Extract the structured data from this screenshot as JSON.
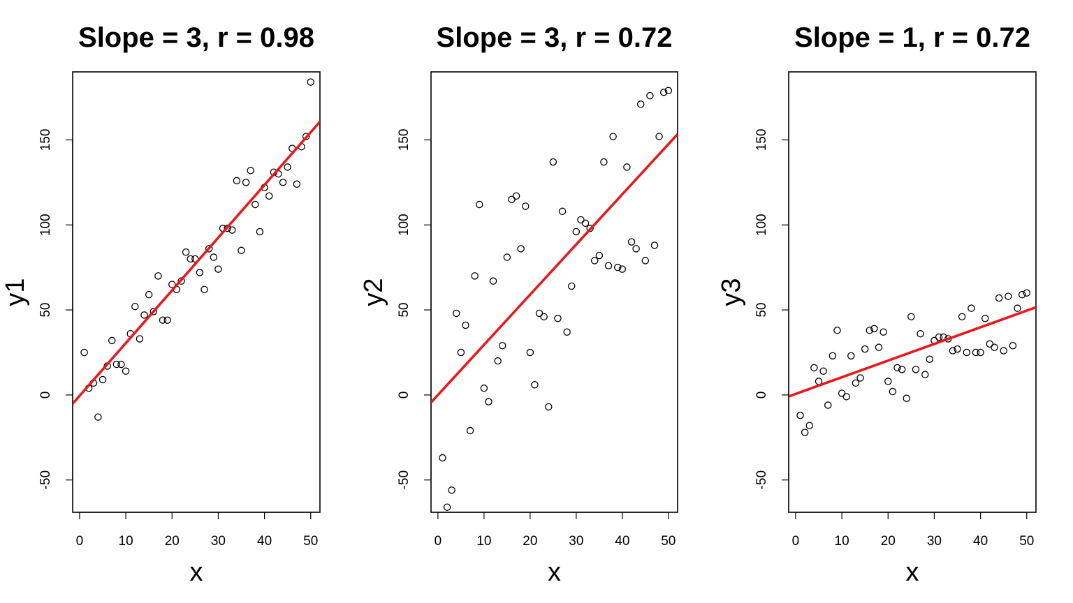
{
  "chart_data": [
    {
      "type": "scatter",
      "title": "Slope = 3, r = 0.98",
      "xlabel": "x",
      "ylabel": "y1",
      "xlim": [
        -1.5,
        52
      ],
      "ylim": [
        -69,
        190
      ],
      "xticks": [
        0,
        10,
        20,
        30,
        40,
        50
      ],
      "yticks": [
        -50,
        0,
        50,
        100,
        150
      ],
      "grid": false,
      "point_color": "#000000",
      "line_color": "#e8191b",
      "fit_line": {
        "slope": 3.1,
        "intercept": -0.5
      },
      "series": [
        {
          "x": [
            1,
            2,
            3,
            4,
            5,
            6,
            7,
            8,
            9,
            10,
            11,
            12,
            13,
            14,
            15,
            16,
            17,
            18,
            19,
            20,
            21,
            22,
            23,
            24,
            25,
            26,
            27,
            28,
            29,
            30,
            31,
            32,
            33,
            34,
            35,
            36,
            37,
            38,
            39,
            40,
            41,
            42,
            43,
            44,
            45,
            46,
            47,
            48,
            49,
            50
          ],
          "y": [
            25,
            4,
            7,
            -13,
            9,
            17,
            32,
            18,
            18,
            14,
            36,
            52,
            33,
            47,
            59,
            49,
            70,
            44,
            44,
            65,
            62,
            67,
            84,
            80,
            80,
            72,
            62,
            86,
            81,
            74,
            98,
            98,
            97,
            126,
            85,
            125,
            132,
            112,
            96,
            122,
            117,
            131,
            130,
            125,
            134,
            145,
            124,
            146,
            152,
            184
          ]
        }
      ]
    },
    {
      "type": "scatter",
      "title": "Slope = 3, r = 0.72",
      "xlabel": "x",
      "ylabel": "y2",
      "xlim": [
        -1.5,
        52
      ],
      "ylim": [
        -69,
        190
      ],
      "xticks": [
        0,
        10,
        20,
        30,
        40,
        50
      ],
      "yticks": [
        -50,
        0,
        50,
        100,
        150
      ],
      "grid": false,
      "point_color": "#000000",
      "line_color": "#e8191b",
      "fit_line": {
        "slope": 2.95,
        "intercept": 0
      },
      "series": [
        {
          "x": [
            1,
            2,
            3,
            4,
            5,
            6,
            7,
            8,
            9,
            10,
            11,
            12,
            13,
            14,
            15,
            16,
            17,
            18,
            19,
            20,
            21,
            22,
            23,
            24,
            25,
            26,
            27,
            28,
            29,
            30,
            31,
            32,
            33,
            34,
            35,
            36,
            37,
            38,
            39,
            40,
            41,
            42,
            43,
            44,
            45,
            46,
            47,
            48,
            49,
            50
          ],
          "y": [
            -37,
            -66,
            -56,
            48,
            25,
            41,
            -21,
            70,
            112,
            4,
            -4,
            67,
            20,
            29,
            81,
            115,
            117,
            86,
            111,
            25,
            6,
            48,
            46,
            -7,
            137,
            45,
            108,
            37,
            64,
            96,
            103,
            101,
            98,
            79,
            82,
            137,
            76,
            152,
            75,
            74,
            134,
            90,
            86,
            171,
            79,
            176,
            88,
            152,
            178,
            179
          ]
        }
      ]
    },
    {
      "type": "scatter",
      "title": "Slope = 1, r = 0.72",
      "xlabel": "x",
      "ylabel": "y3",
      "xlim": [
        -1.5,
        52
      ],
      "ylim": [
        -69,
        190
      ],
      "xticks": [
        0,
        10,
        20,
        30,
        40,
        50
      ],
      "yticks": [
        -50,
        0,
        50,
        100,
        150
      ],
      "grid": false,
      "point_color": "#000000",
      "line_color": "#e8191b",
      "fit_line": {
        "slope": 0.98,
        "intercept": 0.6
      },
      "series": [
        {
          "x": [
            1,
            2,
            3,
            4,
            5,
            6,
            7,
            8,
            9,
            10,
            11,
            12,
            13,
            14,
            15,
            16,
            17,
            18,
            19,
            20,
            21,
            22,
            23,
            24,
            25,
            26,
            27,
            28,
            29,
            30,
            31,
            32,
            33,
            34,
            35,
            36,
            37,
            38,
            39,
            40,
            41,
            42,
            43,
            44,
            45,
            46,
            47,
            48,
            49,
            50
          ],
          "y": [
            -12,
            -22,
            -18,
            16,
            8,
            14,
            -6,
            23,
            38,
            1,
            -1,
            23,
            7,
            10,
            27,
            38,
            39,
            28,
            37,
            8,
            2,
            16,
            15,
            -2,
            46,
            15,
            36,
            12,
            21,
            32,
            34,
            34,
            33,
            26,
            27,
            46,
            25,
            51,
            25,
            25,
            45,
            30,
            28,
            57,
            26,
            58,
            29,
            51,
            59,
            60
          ]
        }
      ]
    }
  ]
}
